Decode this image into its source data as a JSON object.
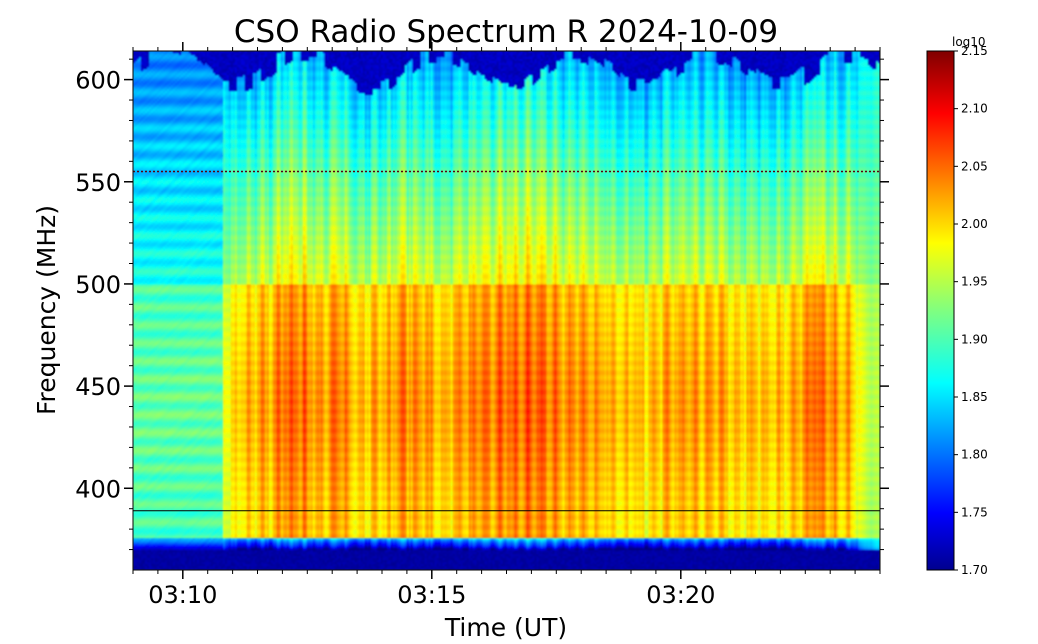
{
  "chart_data": {
    "type": "heatmap",
    "title": "CSO Radio Spectrum R 2024-10-09",
    "xlabel": "Time (UT)",
    "ylabel": "Frequency (MHz)",
    "xlim": [
      "03:09",
      "03:24"
    ],
    "ylim": [
      360,
      614
    ],
    "x_ticks": [
      "03:10",
      "03:15",
      "03:20"
    ],
    "y_ticks": [
      400,
      450,
      500,
      550,
      600
    ],
    "colormap": "jet",
    "colorbar": {
      "label": "log10",
      "range": [
        1.7,
        2.15
      ],
      "ticks": [
        "1.70",
        "1.75",
        "1.80",
        "1.85",
        "1.90",
        "1.95",
        "2.00",
        "2.05",
        "2.10",
        "2.15"
      ]
    },
    "horizontal_lines_mhz": [
      555,
      389
    ],
    "legend": "none",
    "grid": false
  }
}
